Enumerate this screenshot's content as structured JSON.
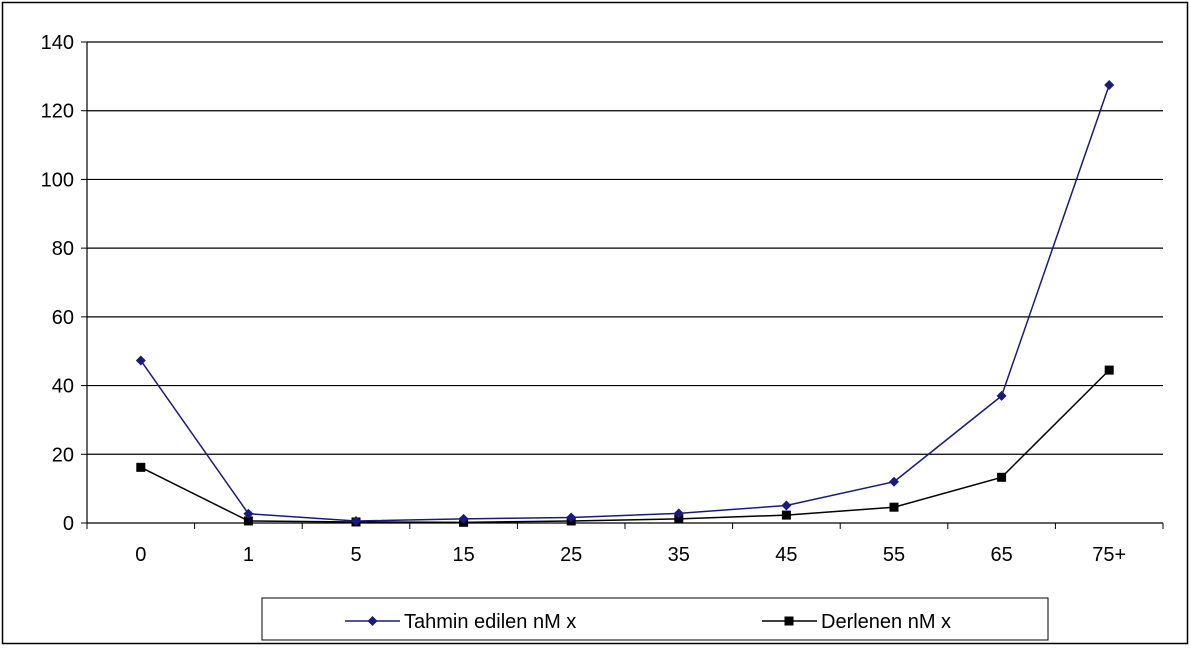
{
  "chart_data": {
    "type": "line",
    "categories": [
      "0",
      "1",
      "5",
      "15",
      "25",
      "35",
      "45",
      "55",
      "65",
      "75+"
    ],
    "ylim": [
      0,
      140
    ],
    "yticks": [
      0,
      20,
      40,
      60,
      80,
      100,
      120,
      140
    ],
    "grid": "horizontal",
    "legend_position": "bottom",
    "series": [
      {
        "name": "Tahmin edilen nM x",
        "color": "#1a1a7a",
        "marker": "diamond",
        "values": [
          47.3,
          2.7,
          0.6,
          1.2,
          1.6,
          2.8,
          5.1,
          12.0,
          37.0,
          127.5
        ]
      },
      {
        "name": "Derlenen nM x",
        "color": "#000000",
        "marker": "square",
        "values": [
          16.2,
          0.6,
          0.3,
          0.2,
          0.6,
          1.2,
          2.3,
          4.6,
          13.3,
          44.5
        ]
      }
    ]
  }
}
